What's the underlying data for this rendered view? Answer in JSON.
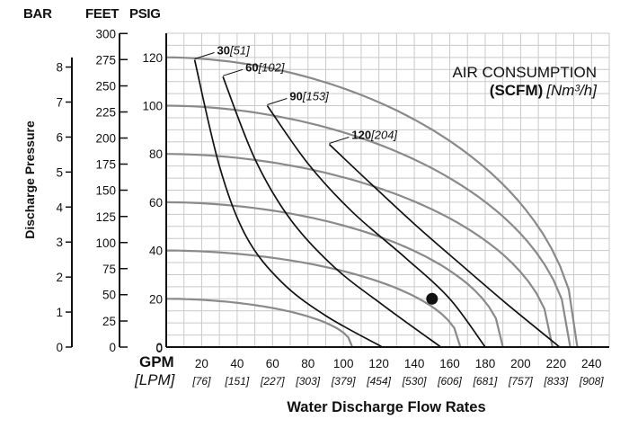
{
  "chart_data": {
    "type": "line",
    "xlabel": "Water Discharge Flow Rates",
    "x_units": [
      "GPM",
      "[LPM]"
    ],
    "xlim": [
      0,
      250
    ],
    "ylim_psig": [
      0,
      130
    ],
    "x_ticks": [
      {
        "gpm": "0"
      },
      {
        "gpm": "20",
        "lpm": "[76]"
      },
      {
        "gpm": "40",
        "lpm": "[151]"
      },
      {
        "gpm": "60",
        "lpm": "[227]"
      },
      {
        "gpm": "80",
        "lpm": "[303]"
      },
      {
        "gpm": "100",
        "lpm": "[379]"
      },
      {
        "gpm": "120",
        "lpm": "[454]"
      },
      {
        "gpm": "140",
        "lpm": "[530]"
      },
      {
        "gpm": "160",
        "lpm": "[606]"
      },
      {
        "gpm": "180",
        "lpm": "[681]"
      },
      {
        "gpm": "200",
        "lpm": "[757]"
      },
      {
        "gpm": "220",
        "lpm": "[833]"
      },
      {
        "gpm": "240",
        "lpm": "[908]"
      }
    ],
    "psig_ticks": [
      "0",
      "20",
      "40",
      "60",
      "80",
      "100",
      "120"
    ],
    "ylabel": "Discharge Pressure",
    "y_scales": [
      {
        "header": "BAR",
        "ticks": [
          {
            "label": "0",
            "psig": 0
          },
          {
            "label": "1",
            "psig": 14.5
          },
          {
            "label": "2",
            "psig": 29
          },
          {
            "label": "3",
            "psig": 43.5
          },
          {
            "label": "4",
            "psig": 58
          },
          {
            "label": "5",
            "psig": 72.5
          },
          {
            "label": "6",
            "psig": 87
          },
          {
            "label": "7",
            "psig": 101.5
          },
          {
            "label": "8",
            "psig": 116
          }
        ]
      },
      {
        "header": "FEET",
        "ticks": [
          {
            "label": "0",
            "psig": 0
          },
          {
            "label": "25",
            "psig": 10.8
          },
          {
            "label": "50",
            "psig": 21.7
          },
          {
            "label": "75",
            "psig": 32.5
          },
          {
            "label": "100",
            "psig": 43.3
          },
          {
            "label": "125",
            "psig": 54.1
          },
          {
            "label": "150",
            "psig": 65
          },
          {
            "label": "175",
            "psig": 75.8
          },
          {
            "label": "200",
            "psig": 86.6
          },
          {
            "label": "225",
            "psig": 97.4
          },
          {
            "label": "250",
            "psig": 108.2
          },
          {
            "label": "275",
            "psig": 119.1
          },
          {
            "label": "300",
            "psig": 129.9
          }
        ]
      },
      {
        "header": "PSIG"
      }
    ],
    "annotation": {
      "line1": "AIR CONSUMPTION",
      "line2_bold": "(SCFM)",
      "line2_italic": "[Nm³/h]"
    },
    "pressure_curves": [
      {
        "shutoff_psig": 120,
        "max_gpm": 232
      },
      {
        "shutoff_psig": 100,
        "max_gpm": 228
      },
      {
        "shutoff_psig": 80,
        "max_gpm": 218
      },
      {
        "shutoff_psig": 60,
        "max_gpm": 190
      },
      {
        "shutoff_psig": 40,
        "max_gpm": 166
      },
      {
        "shutoff_psig": 20,
        "max_gpm": 105
      }
    ],
    "air_curves": [
      {
        "label": "30",
        "label_metric": "[51]",
        "points": [
          [
            16,
            119
          ],
          [
            30,
            75
          ],
          [
            45,
            46
          ],
          [
            65,
            27
          ],
          [
            90,
            13
          ],
          [
            122,
            0
          ]
        ]
      },
      {
        "label": "60",
        "label_metric": "[102]",
        "points": [
          [
            32,
            112
          ],
          [
            50,
            78
          ],
          [
            70,
            53
          ],
          [
            95,
            33
          ],
          [
            123,
            17
          ],
          [
            155,
            0
          ]
        ]
      },
      {
        "label": "90",
        "label_metric": "[153]",
        "points": [
          [
            57,
            100
          ],
          [
            80,
            76
          ],
          [
            105,
            56
          ],
          [
            135,
            37
          ],
          [
            160,
            20
          ],
          [
            180,
            0
          ]
        ]
      },
      {
        "label": "120",
        "label_metric": "[204]",
        "points": [
          [
            92,
            84
          ],
          [
            115,
            68
          ],
          [
            140,
            51
          ],
          [
            165,
            35
          ],
          [
            192,
            18
          ],
          [
            222,
            0
          ]
        ]
      }
    ],
    "marker": {
      "gpm": 150,
      "psig": 20
    },
    "grid": true
  }
}
